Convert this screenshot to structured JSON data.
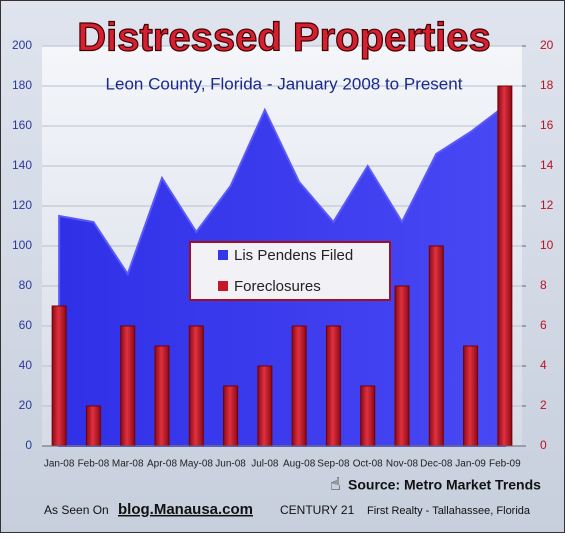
{
  "chart_data": {
    "type": "area-bar",
    "title": "Distressed Properties",
    "subtitle": "Leon County, Florida - January 2008 to Present",
    "categories": [
      "Jan-08",
      "Feb-08",
      "Mar-08",
      "Apr-08",
      "May-08",
      "Jun-08",
      "Jul-08",
      "Aug-08",
      "Sep-08",
      "Oct-08",
      "Nov-08",
      "Dec-08",
      "Jan-09",
      "Feb-09"
    ],
    "series": [
      {
        "name": "Lis Pendens Filed",
        "color": "#3535ee",
        "kind": "area",
        "values": [
          115,
          112,
          86,
          134,
          107,
          130,
          168,
          132,
          112,
          140,
          112,
          146,
          157,
          170
        ]
      },
      {
        "name": "Foreclosures",
        "color": "#c81828",
        "kind": "bar",
        "axis": "y2",
        "values": [
          7,
          2,
          6,
          5,
          6,
          3,
          4,
          6,
          6,
          3,
          8,
          10,
          5,
          18
        ]
      }
    ],
    "ylim": [
      0,
      200
    ],
    "yticks": [
      0,
      20,
      40,
      60,
      80,
      100,
      120,
      140,
      160,
      180,
      200
    ],
    "y2lim": [
      0,
      20
    ],
    "y2ticks": [
      0,
      2,
      4,
      6,
      8,
      10,
      12,
      14,
      16,
      18,
      20
    ],
    "grid": true,
    "source": "Source: Metro Market Trends",
    "footer": {
      "seen": "As Seen On",
      "site": "blog.Manausa.com",
      "brand": "CENTURY 21",
      "office": "First Realty - Tallahassee, Florida"
    }
  }
}
